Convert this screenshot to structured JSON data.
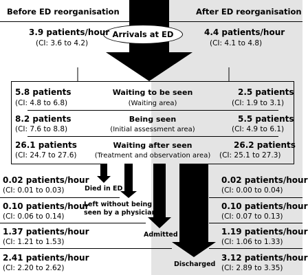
{
  "headers": {
    "before": "Before ED reorganisation",
    "after": "After ED reorganisation"
  },
  "arrivals": {
    "label": "Arrivals at ED",
    "before": {
      "value": "3.9 patients/hour",
      "ci": "(CI: 3.6 to 4.2)"
    },
    "after": {
      "value": "4.4 patients/hour",
      "ci": "(CI: 4.1 to 4.8)"
    }
  },
  "stages": [
    {
      "title": "Waiting to be seen",
      "subtitle": "(Waiting area)",
      "before": {
        "value": "5.8 patients",
        "ci": "(CI: 4.8 to 6.8)"
      },
      "after": {
        "value": "2.5 patients",
        "ci": "(CI: 1.9 to 3.1)"
      }
    },
    {
      "title": "Being seen",
      "subtitle": "(Initial assessment area)",
      "before": {
        "value": "8.2 patients",
        "ci": "(CI: 7.6 to 8.8)"
      },
      "after": {
        "value": "5.5 patients",
        "ci": "(CI: 4.9 to 6.1)"
      }
    },
    {
      "title": "Waiting after seen",
      "subtitle": "(Treatment and observation area)",
      "before": {
        "value": "26.1 patients",
        "ci": "(CI: 24.7 to 27.6)"
      },
      "after": {
        "value": "26.2 patients",
        "ci": "(CI: 25.1 to 27.3)"
      }
    }
  ],
  "outflows": [
    {
      "label": "Died in ED",
      "before": {
        "value": "0.02 patients/hour",
        "ci": "(CI: 0.01 to 0.03)"
      },
      "after": {
        "value": "0.02 patients/hour",
        "ci": "(CI: 0.00 to 0.04)"
      }
    },
    {
      "label_line1": "Left without being",
      "label_line2": "seen by a physician",
      "before": {
        "value": "0.10 patients/hour",
        "ci": "(CI: 0.06 to 0.14)"
      },
      "after": {
        "value": "0.10 patients/hour",
        "ci": "(CI: 0.07 to 0.13)"
      }
    },
    {
      "label": "Admitted",
      "before": {
        "value": "1.37 patients/hour",
        "ci": "(CI: 1.21 to 1.53)"
      },
      "after": {
        "value": "1.19 patients/hour",
        "ci": "(CI: 1.06 to 1.33)"
      }
    },
    {
      "label": "Discharged",
      "before": {
        "value": "2.41 patients/hour",
        "ci": "(CI: 2.20 to 2.62)"
      },
      "after": {
        "value": "3.12 patients/hour",
        "ci": "(CI: 2.89 to 3.35)"
      }
    }
  ]
}
